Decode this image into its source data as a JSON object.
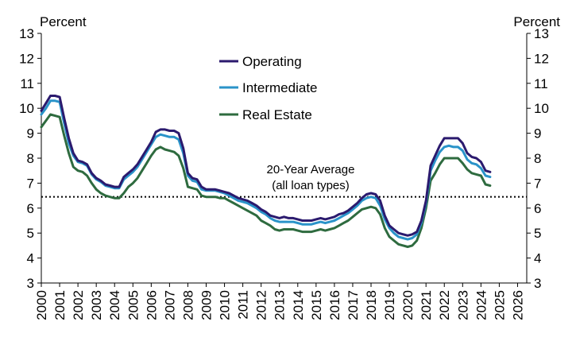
{
  "chart_data": {
    "type": "line",
    "title": "",
    "y_unit_left": "Percent",
    "y_unit_right": "Percent",
    "xlabel": "",
    "ylabel": "",
    "x_range": [
      2000.0,
      2026.5
    ],
    "ylim": [
      3,
      13
    ],
    "y_ticks": [
      "3",
      "4",
      "5",
      "6",
      "7",
      "8",
      "9",
      "10",
      "11",
      "12",
      "13"
    ],
    "x_ticks": [
      "2000",
      "2001",
      "2002",
      "2003",
      "2004",
      "2005",
      "2006",
      "2007",
      "2008",
      "2009",
      "2010",
      "2011",
      "2012",
      "2013",
      "2014",
      "2015",
      "2016",
      "2017",
      "2018",
      "2019",
      "2020",
      "2021",
      "2022",
      "2023",
      "2024",
      "2025",
      "2026"
    ],
    "grid": false,
    "legend_position": "top-center",
    "reference_line": {
      "label_line1": "20-Year Average",
      "label_line2": "(all loan types)",
      "value": 6.45,
      "style": "dotted",
      "color": "#000000"
    },
    "series": [
      {
        "name": "Operating",
        "color": "#2b1a6e",
        "points": [
          [
            2000.0,
            9.9
          ],
          [
            2000.25,
            10.2
          ],
          [
            2000.5,
            10.5
          ],
          [
            2000.75,
            10.5
          ],
          [
            2001.0,
            10.45
          ],
          [
            2001.25,
            9.6
          ],
          [
            2001.5,
            8.8
          ],
          [
            2001.75,
            8.2
          ],
          [
            2002.0,
            7.9
          ],
          [
            2002.25,
            7.85
          ],
          [
            2002.5,
            7.75
          ],
          [
            2002.75,
            7.4
          ],
          [
            2003.0,
            7.2
          ],
          [
            2003.25,
            7.1
          ],
          [
            2003.5,
            6.95
          ],
          [
            2003.75,
            6.9
          ],
          [
            2004.0,
            6.85
          ],
          [
            2004.25,
            6.85
          ],
          [
            2004.5,
            7.25
          ],
          [
            2004.75,
            7.4
          ],
          [
            2005.0,
            7.55
          ],
          [
            2005.25,
            7.75
          ],
          [
            2005.5,
            8.05
          ],
          [
            2005.75,
            8.35
          ],
          [
            2006.0,
            8.65
          ],
          [
            2006.25,
            9.05
          ],
          [
            2006.5,
            9.15
          ],
          [
            2006.75,
            9.15
          ],
          [
            2007.0,
            9.1
          ],
          [
            2007.25,
            9.1
          ],
          [
            2007.5,
            9.0
          ],
          [
            2007.75,
            8.4
          ],
          [
            2008.0,
            7.4
          ],
          [
            2008.25,
            7.2
          ],
          [
            2008.5,
            7.15
          ],
          [
            2008.75,
            6.85
          ],
          [
            2009.0,
            6.75
          ],
          [
            2009.25,
            6.75
          ],
          [
            2009.5,
            6.75
          ],
          [
            2009.75,
            6.7
          ],
          [
            2010.0,
            6.65
          ],
          [
            2010.25,
            6.6
          ],
          [
            2010.5,
            6.5
          ],
          [
            2010.75,
            6.4
          ],
          [
            2011.0,
            6.35
          ],
          [
            2011.25,
            6.3
          ],
          [
            2011.5,
            6.2
          ],
          [
            2011.75,
            6.1
          ],
          [
            2012.0,
            5.95
          ],
          [
            2012.25,
            5.85
          ],
          [
            2012.5,
            5.7
          ],
          [
            2012.75,
            5.65
          ],
          [
            2013.0,
            5.6
          ],
          [
            2013.25,
            5.65
          ],
          [
            2013.5,
            5.6
          ],
          [
            2013.75,
            5.6
          ],
          [
            2014.0,
            5.55
          ],
          [
            2014.25,
            5.5
          ],
          [
            2014.5,
            5.5
          ],
          [
            2014.75,
            5.5
          ],
          [
            2015.0,
            5.55
          ],
          [
            2015.25,
            5.6
          ],
          [
            2015.5,
            5.55
          ],
          [
            2015.75,
            5.6
          ],
          [
            2016.0,
            5.65
          ],
          [
            2016.25,
            5.75
          ],
          [
            2016.5,
            5.8
          ],
          [
            2016.75,
            5.9
          ],
          [
            2017.0,
            6.05
          ],
          [
            2017.25,
            6.2
          ],
          [
            2017.5,
            6.4
          ],
          [
            2017.75,
            6.55
          ],
          [
            2018.0,
            6.6
          ],
          [
            2018.25,
            6.55
          ],
          [
            2018.5,
            6.3
          ],
          [
            2018.75,
            5.7
          ],
          [
            2019.0,
            5.3
          ],
          [
            2019.25,
            5.15
          ],
          [
            2019.5,
            5.0
          ],
          [
            2019.75,
            4.95
          ],
          [
            2020.0,
            4.9
          ],
          [
            2020.25,
            4.95
          ],
          [
            2020.5,
            5.05
          ],
          [
            2020.75,
            5.5
          ],
          [
            2021.0,
            6.3
          ],
          [
            2021.25,
            7.7
          ],
          [
            2021.5,
            8.1
          ],
          [
            2021.75,
            8.5
          ],
          [
            2022.0,
            8.8
          ],
          [
            2022.25,
            8.8
          ],
          [
            2022.5,
            8.8
          ],
          [
            2022.75,
            8.8
          ],
          [
            2023.0,
            8.6
          ],
          [
            2023.25,
            8.2
          ],
          [
            2023.5,
            8.05
          ],
          [
            2023.75,
            8.0
          ],
          [
            2024.0,
            7.85
          ],
          [
            2024.25,
            7.5
          ],
          [
            2024.5,
            7.45
          ]
        ]
      },
      {
        "name": "Intermediate",
        "color": "#2a93c9",
        "points": [
          [
            2000.0,
            9.75
          ],
          [
            2000.25,
            10.0
          ],
          [
            2000.5,
            10.3
          ],
          [
            2000.75,
            10.3
          ],
          [
            2001.0,
            10.25
          ],
          [
            2001.25,
            9.4
          ],
          [
            2001.5,
            8.6
          ],
          [
            2001.75,
            8.1
          ],
          [
            2002.0,
            7.85
          ],
          [
            2002.25,
            7.8
          ],
          [
            2002.5,
            7.7
          ],
          [
            2002.75,
            7.35
          ],
          [
            2003.0,
            7.15
          ],
          [
            2003.25,
            7.05
          ],
          [
            2003.5,
            6.9
          ],
          [
            2003.75,
            6.85
          ],
          [
            2004.0,
            6.8
          ],
          [
            2004.25,
            6.8
          ],
          [
            2004.5,
            7.15
          ],
          [
            2004.75,
            7.3
          ],
          [
            2005.0,
            7.45
          ],
          [
            2005.25,
            7.65
          ],
          [
            2005.5,
            7.95
          ],
          [
            2005.75,
            8.25
          ],
          [
            2006.0,
            8.55
          ],
          [
            2006.25,
            8.85
          ],
          [
            2006.5,
            8.95
          ],
          [
            2006.75,
            8.9
          ],
          [
            2007.0,
            8.85
          ],
          [
            2007.25,
            8.85
          ],
          [
            2007.5,
            8.75
          ],
          [
            2007.75,
            8.2
          ],
          [
            2008.0,
            7.3
          ],
          [
            2008.25,
            7.1
          ],
          [
            2008.5,
            7.05
          ],
          [
            2008.75,
            6.75
          ],
          [
            2009.0,
            6.7
          ],
          [
            2009.25,
            6.7
          ],
          [
            2009.5,
            6.7
          ],
          [
            2009.75,
            6.65
          ],
          [
            2010.0,
            6.6
          ],
          [
            2010.25,
            6.5
          ],
          [
            2010.5,
            6.4
          ],
          [
            2010.75,
            6.3
          ],
          [
            2011.0,
            6.25
          ],
          [
            2011.25,
            6.2
          ],
          [
            2011.5,
            6.1
          ],
          [
            2011.75,
            6.0
          ],
          [
            2012.0,
            5.85
          ],
          [
            2012.25,
            5.75
          ],
          [
            2012.5,
            5.6
          ],
          [
            2012.75,
            5.5
          ],
          [
            2013.0,
            5.45
          ],
          [
            2013.25,
            5.45
          ],
          [
            2013.5,
            5.45
          ],
          [
            2013.75,
            5.45
          ],
          [
            2014.0,
            5.4
          ],
          [
            2014.25,
            5.35
          ],
          [
            2014.5,
            5.35
          ],
          [
            2014.75,
            5.35
          ],
          [
            2015.0,
            5.4
          ],
          [
            2015.25,
            5.45
          ],
          [
            2015.5,
            5.4
          ],
          [
            2015.75,
            5.45
          ],
          [
            2016.0,
            5.5
          ],
          [
            2016.25,
            5.6
          ],
          [
            2016.5,
            5.7
          ],
          [
            2016.75,
            5.8
          ],
          [
            2017.0,
            5.95
          ],
          [
            2017.25,
            6.1
          ],
          [
            2017.5,
            6.3
          ],
          [
            2017.75,
            6.4
          ],
          [
            2018.0,
            6.45
          ],
          [
            2018.25,
            6.4
          ],
          [
            2018.5,
            6.1
          ],
          [
            2018.75,
            5.55
          ],
          [
            2019.0,
            5.2
          ],
          [
            2019.25,
            5.0
          ],
          [
            2019.5,
            4.85
          ],
          [
            2019.75,
            4.8
          ],
          [
            2020.0,
            4.75
          ],
          [
            2020.25,
            4.8
          ],
          [
            2020.5,
            4.95
          ],
          [
            2020.75,
            5.4
          ],
          [
            2021.0,
            6.2
          ],
          [
            2021.25,
            7.5
          ],
          [
            2021.5,
            7.9
          ],
          [
            2021.75,
            8.25
          ],
          [
            2022.0,
            8.45
          ],
          [
            2022.25,
            8.5
          ],
          [
            2022.5,
            8.45
          ],
          [
            2022.75,
            8.45
          ],
          [
            2023.0,
            8.3
          ],
          [
            2023.25,
            7.95
          ],
          [
            2023.5,
            7.8
          ],
          [
            2023.75,
            7.75
          ],
          [
            2024.0,
            7.6
          ],
          [
            2024.25,
            7.3
          ],
          [
            2024.5,
            7.25
          ]
        ]
      },
      {
        "name": "Real Estate",
        "color": "#2e6b3f",
        "points": [
          [
            2000.0,
            9.25
          ],
          [
            2000.25,
            9.5
          ],
          [
            2000.5,
            9.75
          ],
          [
            2000.75,
            9.7
          ],
          [
            2001.0,
            9.65
          ],
          [
            2001.25,
            8.9
          ],
          [
            2001.5,
            8.2
          ],
          [
            2001.75,
            7.65
          ],
          [
            2002.0,
            7.5
          ],
          [
            2002.25,
            7.45
          ],
          [
            2002.5,
            7.3
          ],
          [
            2002.75,
            7.0
          ],
          [
            2003.0,
            6.75
          ],
          [
            2003.25,
            6.6
          ],
          [
            2003.5,
            6.5
          ],
          [
            2003.75,
            6.45
          ],
          [
            2004.0,
            6.4
          ],
          [
            2004.25,
            6.4
          ],
          [
            2004.5,
            6.6
          ],
          [
            2004.75,
            6.85
          ],
          [
            2005.0,
            7.0
          ],
          [
            2005.25,
            7.2
          ],
          [
            2005.5,
            7.5
          ],
          [
            2005.75,
            7.8
          ],
          [
            2006.0,
            8.1
          ],
          [
            2006.25,
            8.35
          ],
          [
            2006.5,
            8.45
          ],
          [
            2006.75,
            8.35
          ],
          [
            2007.0,
            8.3
          ],
          [
            2007.25,
            8.25
          ],
          [
            2007.5,
            8.1
          ],
          [
            2007.75,
            7.6
          ],
          [
            2008.0,
            6.85
          ],
          [
            2008.25,
            6.8
          ],
          [
            2008.5,
            6.75
          ],
          [
            2008.75,
            6.5
          ],
          [
            2009.0,
            6.45
          ],
          [
            2009.25,
            6.45
          ],
          [
            2009.5,
            6.45
          ],
          [
            2009.75,
            6.4
          ],
          [
            2010.0,
            6.4
          ],
          [
            2010.25,
            6.3
          ],
          [
            2010.5,
            6.2
          ],
          [
            2010.75,
            6.1
          ],
          [
            2011.0,
            6.0
          ],
          [
            2011.25,
            5.9
          ],
          [
            2011.5,
            5.8
          ],
          [
            2011.75,
            5.7
          ],
          [
            2012.0,
            5.5
          ],
          [
            2012.25,
            5.4
          ],
          [
            2012.5,
            5.3
          ],
          [
            2012.75,
            5.15
          ],
          [
            2013.0,
            5.1
          ],
          [
            2013.25,
            5.15
          ],
          [
            2013.5,
            5.15
          ],
          [
            2013.75,
            5.15
          ],
          [
            2014.0,
            5.1
          ],
          [
            2014.25,
            5.05
          ],
          [
            2014.5,
            5.05
          ],
          [
            2014.75,
            5.05
          ],
          [
            2015.0,
            5.1
          ],
          [
            2015.25,
            5.15
          ],
          [
            2015.5,
            5.1
          ],
          [
            2015.75,
            5.15
          ],
          [
            2016.0,
            5.2
          ],
          [
            2016.25,
            5.3
          ],
          [
            2016.5,
            5.4
          ],
          [
            2016.75,
            5.5
          ],
          [
            2017.0,
            5.65
          ],
          [
            2017.25,
            5.8
          ],
          [
            2017.5,
            5.95
          ],
          [
            2017.75,
            6.0
          ],
          [
            2018.0,
            6.05
          ],
          [
            2018.25,
            6.0
          ],
          [
            2018.5,
            5.75
          ],
          [
            2018.75,
            5.2
          ],
          [
            2019.0,
            4.85
          ],
          [
            2019.25,
            4.7
          ],
          [
            2019.5,
            4.55
          ],
          [
            2019.75,
            4.5
          ],
          [
            2020.0,
            4.45
          ],
          [
            2020.25,
            4.5
          ],
          [
            2020.5,
            4.7
          ],
          [
            2020.75,
            5.2
          ],
          [
            2021.0,
            6.0
          ],
          [
            2021.25,
            7.1
          ],
          [
            2021.5,
            7.4
          ],
          [
            2021.75,
            7.75
          ],
          [
            2022.0,
            8.0
          ],
          [
            2022.25,
            8.0
          ],
          [
            2022.5,
            8.0
          ],
          [
            2022.75,
            8.0
          ],
          [
            2023.0,
            7.8
          ],
          [
            2023.25,
            7.55
          ],
          [
            2023.5,
            7.4
          ],
          [
            2023.75,
            7.35
          ],
          [
            2024.0,
            7.3
          ],
          [
            2024.25,
            6.95
          ],
          [
            2024.5,
            6.9
          ]
        ]
      }
    ]
  }
}
